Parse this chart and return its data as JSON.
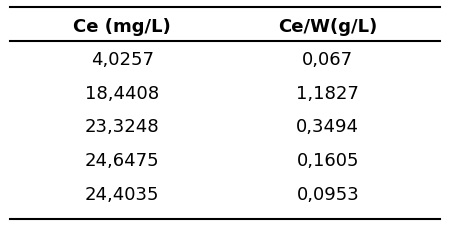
{
  "col1_header": "Ce (mg/L)",
  "col2_header": "Ce/W(g/L)",
  "rows": [
    [
      "4,0257",
      "0,067"
    ],
    [
      "18,4408",
      "1,1827"
    ],
    [
      "23,3248",
      "0,3494"
    ],
    [
      "24,6475",
      "0,1605"
    ],
    [
      "24,4035",
      "0,0953"
    ]
  ],
  "background_color": "#ffffff",
  "header_fontsize": 13,
  "data_fontsize": 13
}
